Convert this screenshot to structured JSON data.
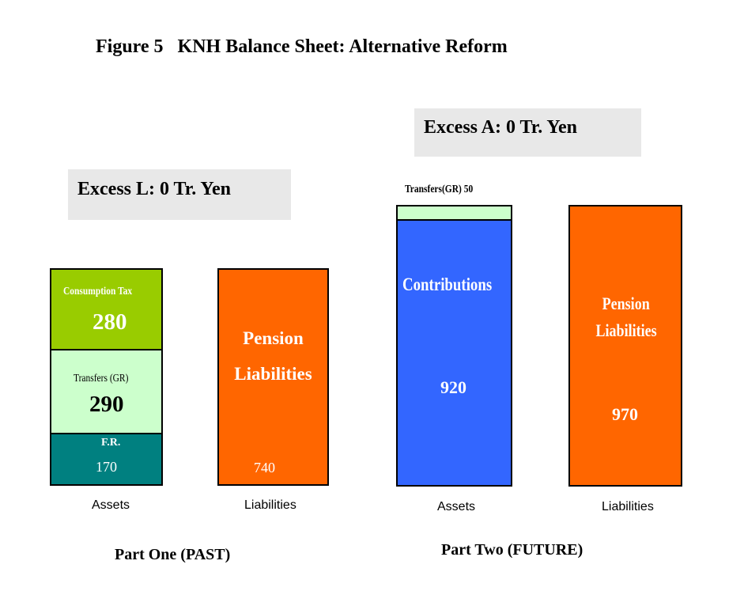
{
  "title": "Figure 5   KNH Balance Sheet: Alternative Reform",
  "colors": {
    "consumption_tax": "#99cc00",
    "transfers": "#ccffcc",
    "fr": "#008080",
    "pension_liabilities": "#ff6600",
    "contributions": "#3366ff",
    "excess_box": "#e8e8e8"
  },
  "part_one": {
    "label": "Part One (PAST)",
    "excess": "Excess L: 0 Tr. Yen",
    "assets": {
      "label": "Assets",
      "segments": [
        {
          "name": "Consumption Tax",
          "value": "280"
        },
        {
          "name": "Transfers (GR)",
          "value": "290"
        },
        {
          "name": "F.R.",
          "value": "170"
        }
      ]
    },
    "liabilities": {
      "label": "Liabilities",
      "name_line1": "Pension",
      "name_line2": "Liabilities",
      "value": "740"
    }
  },
  "part_two": {
    "label": "Part Two (FUTURE)",
    "excess": "Excess A: 0 Tr. Yen",
    "assets": {
      "label": "Assets",
      "transfers_label": "Transfers(GR) 50",
      "contributions_name": "Contributions",
      "contributions_value": "920"
    },
    "liabilities": {
      "label": "Liabilities",
      "name_line1": "Pension",
      "name_line2": "Liabilities",
      "value": "970"
    }
  }
}
